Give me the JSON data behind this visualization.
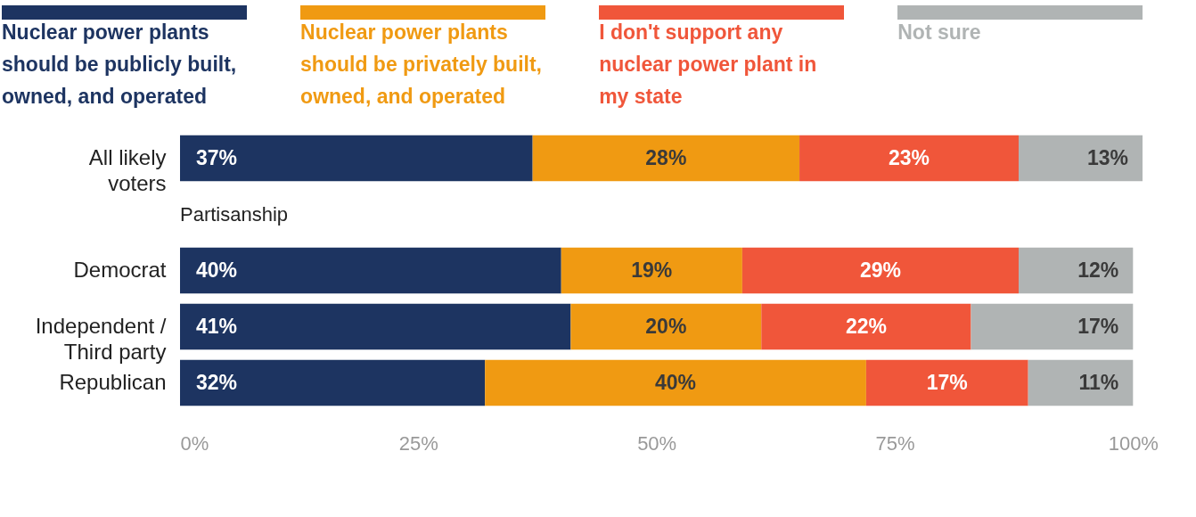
{
  "chart_data": {
    "type": "bar",
    "orientation": "horizontal",
    "stacked": true,
    "categories": [
      "All likely voters",
      null,
      "Democrat",
      "Independent / Third party",
      "Republican"
    ],
    "series": [
      {
        "name": "Nuclear power plants should be publicly built, owned, and operated",
        "color": "#1d3461",
        "values": [
          37,
          null,
          40,
          41,
          32
        ],
        "value_labels": [
          "37%",
          null,
          "40%",
          "41%",
          "32%"
        ]
      },
      {
        "name": "Nuclear power plants should be privately built, owned, and operated",
        "color": "#f09a12",
        "values": [
          28,
          null,
          19,
          20,
          40
        ],
        "value_labels": [
          "28%",
          null,
          "19%",
          "20%",
          "40%"
        ]
      },
      {
        "name": "I don't support any nuclear power plant in my state",
        "color": "#f0563a",
        "values": [
          23,
          null,
          29,
          22,
          17
        ],
        "value_labels": [
          "23%",
          null,
          "29%",
          "22%",
          "17%"
        ]
      },
      {
        "name": "Not sure",
        "color": "#b0b4b4",
        "values": [
          13,
          null,
          12,
          17,
          11
        ],
        "value_labels": [
          "13%",
          null,
          "12%",
          "17%",
          "11%"
        ]
      }
    ],
    "xlim": [
      0,
      101
    ],
    "xticks": [
      {
        "value": 0,
        "label": "0%"
      },
      {
        "value": 25,
        "label": "25%"
      },
      {
        "value": 50,
        "label": "50%"
      },
      {
        "value": 75,
        "label": "75%"
      },
      {
        "value": 100,
        "label": "100%"
      }
    ],
    "annotations": [
      "Partisanship"
    ],
    "legend": "top",
    "grid": false
  }
}
